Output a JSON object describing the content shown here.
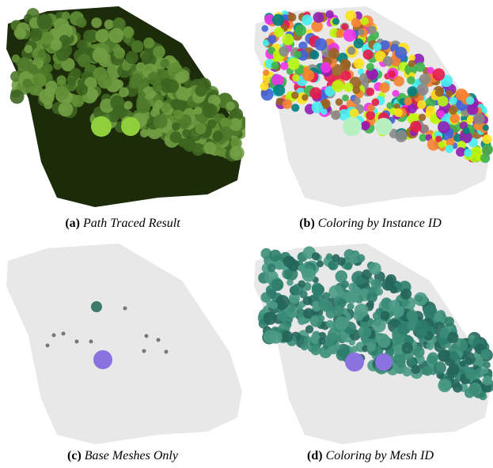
{
  "panels": [
    {
      "label": "(a)",
      "caption": "Path Traced Result"
    },
    {
      "label": "(b)",
      "caption": "Coloring by Instance ID"
    },
    {
      "label": "(c)",
      "caption": "Base Meshes Only"
    },
    {
      "label": "(d)",
      "caption": "Coloring by Mesh ID"
    }
  ]
}
